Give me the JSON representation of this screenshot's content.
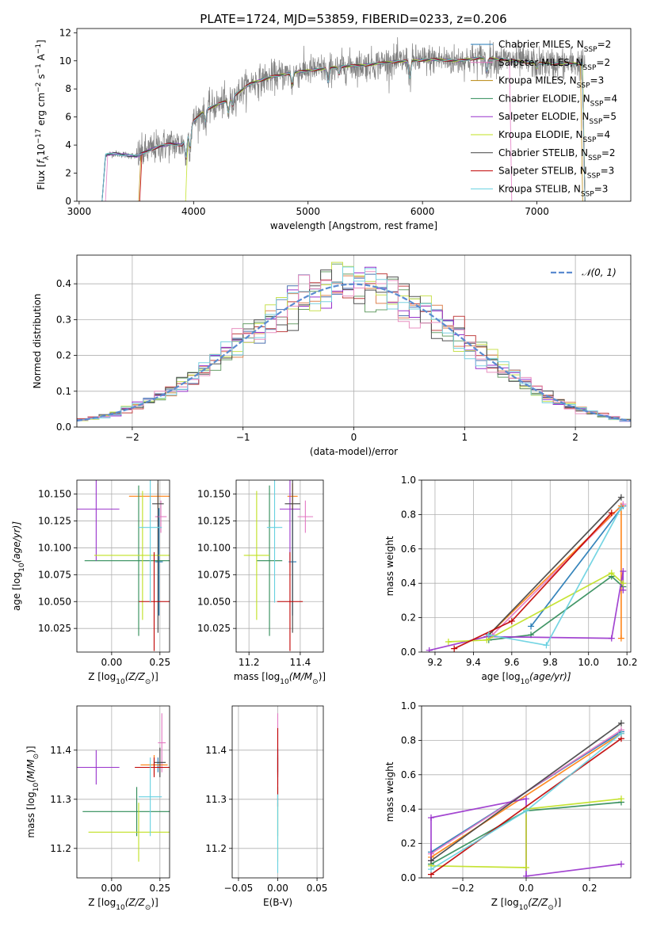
{
  "figure_title": "PLATE=1724, MJD=53859, FIBERID=0233, z=0.206",
  "palette": [
    "#4c72b0",
    "#dd8452",
    "#55a868",
    "#c44e52",
    "#8172b3",
    "#937860",
    "#da8bc3",
    "#8c8c8c",
    "#ccb974",
    "#64b5cd"
  ],
  "chart_data": [
    {
      "id": "spectrum",
      "type": "line",
      "title": "PLATE=1724, MJD=53859, FIBERID=0233, z=0.206",
      "xlabel": "wavelength [Angstrom, rest frame]",
      "ylabel_parts": [
        "Flux [",
        "f",
        "λ",
        "10",
        "−17",
        " erg cm",
        "−2",
        " s",
        "−1",
        " A",
        "−1",
        "]"
      ],
      "xlim": [
        2980,
        7820
      ],
      "ylim": [
        0,
        12.3
      ],
      "xticks": [
        3000,
        4000,
        5000,
        6000,
        7000
      ],
      "yticks": [
        0,
        2,
        4,
        6,
        8,
        10,
        12
      ],
      "legend_position": "upper right",
      "series": [
        {
          "name": "Chabrier MILES",
          "nssp": "2",
          "color": "#1f77b4"
        },
        {
          "name": "Salpeter MILES",
          "nssp": "2",
          "color": "#e377c2"
        },
        {
          "name": "Kroupa MILES",
          "nssp": "3",
          "color": "#b8860b"
        },
        {
          "name": "Chabrier ELODIE",
          "nssp": "4",
          "color": "#2e8b57"
        },
        {
          "name": "Salpeter ELODIE",
          "nssp": "5",
          "color": "#9932cc"
        },
        {
          "name": "Kroupa ELODIE",
          "nssp": "4",
          "color": "#c0e020"
        },
        {
          "name": "Chabrier STELIB",
          "nssp": "2",
          "color": "#404040"
        },
        {
          "name": "Salpeter STELIB",
          "nssp": "3",
          "color": "#c00000"
        },
        {
          "name": "Kroupa STELIB",
          "nssp": "3",
          "color": "#66d0e0"
        }
      ],
      "data_envelope": {
        "x": [
          3200,
          3230,
          3300,
          3400,
          3500,
          3600,
          3700,
          3800,
          3900,
          3950,
          4000,
          4100,
          4300,
          4500,
          4700,
          4900,
          5100,
          5300,
          5500,
          5700,
          5900,
          6100,
          6300,
          6500,
          6700,
          6900,
          7100,
          7300,
          7420
        ],
        "y": [
          0,
          3.3,
          3.4,
          3.3,
          3.2,
          3.6,
          3.9,
          4.1,
          4.0,
          4.9,
          5.7,
          6.5,
          7.2,
          8.4,
          8.9,
          9.2,
          9.4,
          9.6,
          9.7,
          9.9,
          10.0,
          10.1,
          10.0,
          10.2,
          10.1,
          9.9,
          9.8,
          9.8,
          9.8
        ]
      }
    },
    {
      "id": "residuals",
      "type": "histogram",
      "xlabel": "(data-model)/error",
      "ylabel": "Normed distribution",
      "xlim": [
        -2.5,
        2.5
      ],
      "ylim": [
        0,
        0.48
      ],
      "xticks": [
        -2,
        -1,
        0,
        1,
        2
      ],
      "yticks": [
        0.0,
        0.1,
        0.2,
        0.3,
        0.4
      ],
      "legend_label": "𝒩(0, 1)",
      "legend_position": "upper right",
      "bin_width": 0.1,
      "bin_edges_range": [
        -2.5,
        2.5
      ],
      "reference_curve": "normal(0,1)"
    },
    {
      "id": "age-vs-z",
      "type": "errorbar",
      "xlabel_parts": [
        "Z [log",
        "10",
        "(Z/Z",
        "⊙",
        ")]"
      ],
      "ylabel_parts": [
        "age  [log",
        "10",
        "(age/yr)]"
      ],
      "xlim": [
        -0.18,
        0.3
      ],
      "ylim": [
        10.003,
        10.163
      ],
      "xticks": [
        0.0,
        0.25
      ],
      "yticks": [
        10.025,
        10.05,
        10.075,
        10.1,
        10.125,
        10.15
      ],
      "points": [
        {
          "x": 0.245,
          "xerr": 0.02,
          "y": 10.087,
          "yerr": 0.05,
          "color": "#1f77b4"
        },
        {
          "x": 0.255,
          "xerr": 0.03,
          "y": 10.129,
          "yerr": 0.015,
          "color": "#e377c2"
        },
        {
          "x": 0.24,
          "xerr": 0.15,
          "y": 10.148,
          "yerr": 0.012,
          "color": "#ff7f0e"
        },
        {
          "x": 0.14,
          "xerr": 0.28,
          "y": 10.088,
          "yerr": 0.07,
          "color": "#2e8b57"
        },
        {
          "x": -0.08,
          "xerr": 0.12,
          "y": 10.136,
          "yerr": 0.048,
          "color": "#9932cc"
        },
        {
          "x": 0.16,
          "xerr": 0.25,
          "y": 10.093,
          "yerr": 0.06,
          "color": "#c0e020"
        },
        {
          "x": 0.24,
          "xerr": 0.03,
          "y": 10.141,
          "yerr": 0.12,
          "color": "#404040"
        },
        {
          "x": 0.22,
          "xerr": 0.08,
          "y": 10.05,
          "yerr": 0.046,
          "color": "#c00000"
        },
        {
          "x": 0.2,
          "xerr": 0.06,
          "y": 10.119,
          "yerr": 0.07,
          "color": "#66d0e0"
        }
      ]
    },
    {
      "id": "age-vs-mass",
      "type": "errorbar",
      "xlabel_parts": [
        "mass [log",
        "10",
        "(M/M",
        "⊙",
        ")]"
      ],
      "xlim": [
        11.15,
        11.49
      ],
      "ylim": [
        10.003,
        10.163
      ],
      "xticks": [
        11.2,
        11.4
      ],
      "yticks": [
        10.025,
        10.05,
        10.075,
        10.1,
        10.125,
        10.15
      ],
      "points": [
        {
          "x": 11.37,
          "xerr": 0.015,
          "y": 10.087,
          "yerr": 0.05,
          "color": "#1f77b4"
        },
        {
          "x": 11.42,
          "xerr": 0.03,
          "y": 10.129,
          "yerr": 0.015,
          "color": "#e377c2"
        },
        {
          "x": 11.37,
          "xerr": 0.02,
          "y": 10.148,
          "yerr": 0.012,
          "color": "#ff7f0e"
        },
        {
          "x": 11.28,
          "xerr": 0.05,
          "y": 10.088,
          "yerr": 0.07,
          "color": "#2e8b57"
        },
        {
          "x": 11.36,
          "xerr": 0.04,
          "y": 10.136,
          "yerr": 0.048,
          "color": "#9932cc"
        },
        {
          "x": 11.23,
          "xerr": 0.05,
          "y": 10.093,
          "yerr": 0.06,
          "color": "#c0e020"
        },
        {
          "x": 11.37,
          "xerr": 0.03,
          "y": 10.141,
          "yerr": 0.12,
          "color": "#404040"
        },
        {
          "x": 11.36,
          "xerr": 0.05,
          "y": 10.05,
          "yerr": 0.046,
          "color": "#c00000"
        },
        {
          "x": 11.3,
          "xerr": 0.03,
          "y": 10.119,
          "yerr": 0.07,
          "color": "#66d0e0"
        }
      ]
    },
    {
      "id": "weight-vs-age",
      "type": "line",
      "xlabel_parts": [
        "age  [log",
        "10",
        "(age/yr)]"
      ],
      "ylabel": "mass weight",
      "xlim": [
        9.13,
        10.22
      ],
      "ylim": [
        0,
        1.0
      ],
      "xticks": [
        9.2,
        9.4,
        9.6,
        9.8,
        10.0,
        10.2
      ],
      "yticks": [
        0.0,
        0.2,
        0.4,
        0.6,
        0.8,
        1.0
      ],
      "series": [
        {
          "color": "#1f77b4",
          "x": [
            9.7,
            10.18
          ],
          "y": [
            0.15,
            0.85
          ]
        },
        {
          "color": "#e377c2",
          "x": [
            9.5,
            10.18
          ],
          "y": [
            0.1,
            0.86
          ]
        },
        {
          "color": "#ff7f0e",
          "x": [
            9.48,
            10.17,
            10.17
          ],
          "y": [
            0.1,
            0.85,
            0.08
          ]
        },
        {
          "color": "#2e8b57",
          "x": [
            9.48,
            9.7,
            10.12,
            10.18
          ],
          "y": [
            0.07,
            0.1,
            0.44,
            0.38
          ]
        },
        {
          "color": "#9932cc",
          "x": [
            9.17,
            9.47,
            10.12,
            10.18,
            10.18
          ],
          "y": [
            0.01,
            0.09,
            0.08,
            0.47,
            0.36
          ]
        },
        {
          "color": "#c0e020",
          "x": [
            9.27,
            9.47,
            10.12,
            10.18
          ],
          "y": [
            0.06,
            0.07,
            0.46,
            0.4
          ]
        },
        {
          "color": "#404040",
          "x": [
            9.48,
            10.17
          ],
          "y": [
            0.1,
            0.9
          ]
        },
        {
          "color": "#c00000",
          "x": [
            9.3,
            9.6,
            10.12
          ],
          "y": [
            0.02,
            0.18,
            0.81
          ]
        },
        {
          "color": "#66d0e0",
          "x": [
            9.48,
            9.78,
            10.17
          ],
          "y": [
            0.1,
            0.04,
            0.84
          ]
        }
      ]
    },
    {
      "id": "mass-vs-z",
      "type": "errorbar",
      "xlabel_parts": [
        "Z [log",
        "10",
        "(Z/Z",
        "⊙",
        ")]"
      ],
      "ylabel_parts": [
        "mass [log",
        "10",
        "(M/M",
        "⊙",
        ")]"
      ],
      "xlim": [
        -0.18,
        0.3
      ],
      "ylim": [
        11.14,
        11.49
      ],
      "xticks": [
        0.0,
        0.25
      ],
      "yticks": [
        11.2,
        11.3,
        11.4
      ],
      "points": [
        {
          "x": 0.24,
          "xerr": 0.03,
          "y": 11.37,
          "yerr": 0.015,
          "color": "#1f77b4"
        },
        {
          "x": 0.26,
          "xerr": 0.02,
          "y": 11.415,
          "yerr": 0.06,
          "color": "#e377c2"
        },
        {
          "x": 0.22,
          "xerr": 0.07,
          "y": 11.37,
          "yerr": 0.02,
          "color": "#ff7f0e"
        },
        {
          "x": 0.13,
          "xerr": 0.28,
          "y": 11.275,
          "yerr": 0.05,
          "color": "#2e8b57"
        },
        {
          "x": -0.08,
          "xerr": 0.12,
          "y": 11.365,
          "yerr": 0.035,
          "color": "#9932cc"
        },
        {
          "x": 0.14,
          "xerr": 0.26,
          "y": 11.233,
          "yerr": 0.06,
          "color": "#c0e020"
        },
        {
          "x": 0.25,
          "xerr": 0.03,
          "y": 11.375,
          "yerr": 0.03,
          "color": "#404040"
        },
        {
          "x": 0.22,
          "xerr": 0.1,
          "y": 11.365,
          "yerr": 0.02,
          "color": "#c00000"
        },
        {
          "x": 0.2,
          "xerr": 0.06,
          "y": 11.305,
          "yerr": 0.08,
          "color": "#66d0e0"
        }
      ]
    },
    {
      "id": "mass-vs-ebv",
      "type": "errorbar",
      "xlabel": "E(B-V)",
      "xlim": [
        -0.058,
        0.058
      ],
      "ylim": [
        11.14,
        11.49
      ],
      "xticks": [
        -0.05,
        0.0,
        0.05
      ],
      "yticks": [
        11.2,
        11.3,
        11.4
      ],
      "points": [
        {
          "x": 0.0,
          "y": 11.37,
          "yerr": 0.015,
          "color": "#1f77b4"
        },
        {
          "x": 0.0,
          "y": 11.415,
          "yerr": 0.06,
          "color": "#e377c2"
        },
        {
          "x": 0.0,
          "y": 11.37,
          "yerr": 0.02,
          "color": "#ff7f0e"
        },
        {
          "x": 0.0,
          "y": 11.275,
          "yerr": 0.05,
          "color": "#2e8b57"
        },
        {
          "x": 0.0,
          "y": 11.365,
          "yerr": 0.035,
          "color": "#9932cc"
        },
        {
          "x": 0.0,
          "y": 11.233,
          "yerr": 0.06,
          "color": "#c0e020"
        },
        {
          "x": 0.0,
          "y": 11.375,
          "yerr": 0.03,
          "color": "#404040"
        },
        {
          "x": 0.0,
          "y": 11.365,
          "yerr": 0.08,
          "color": "#c00000"
        },
        {
          "x": 0.0,
          "y": 11.23,
          "yerr": 0.08,
          "color": "#66d0e0"
        }
      ]
    },
    {
      "id": "weight-vs-z",
      "type": "line",
      "xlabel_parts": [
        "Z [log",
        "10",
        "(Z/Z",
        "⊙",
        ")]"
      ],
      "ylabel": "mass weight",
      "xlim": [
        -0.33,
        0.33
      ],
      "ylim": [
        0,
        1.0
      ],
      "xticks": [
        -0.2,
        0.0,
        0.2
      ],
      "yticks": [
        0.0,
        0.2,
        0.4,
        0.6,
        0.8,
        1.0
      ],
      "series": [
        {
          "color": "#1f77b4",
          "x": [
            -0.3,
            0.3
          ],
          "y": [
            0.15,
            0.85
          ]
        },
        {
          "color": "#e377c2",
          "x": [
            -0.3,
            0.3
          ],
          "y": [
            0.14,
            0.86
          ]
        },
        {
          "color": "#ff7f0e",
          "x": [
            -0.3,
            0.3
          ],
          "y": [
            0.12,
            0.84
          ]
        },
        {
          "color": "#2e8b57",
          "x": [
            -0.3,
            0.0,
            0.3
          ],
          "y": [
            0.08,
            0.39,
            0.44
          ]
        },
        {
          "color": "#9932cc",
          "x": [
            -0.3,
            -0.3,
            0.0,
            0.0,
            0.3
          ],
          "y": [
            0.1,
            0.35,
            0.46,
            0.01,
            0.08
          ]
        },
        {
          "color": "#c0e020",
          "x": [
            -0.3,
            0.0,
            0.0,
            0.3
          ],
          "y": [
            0.07,
            0.06,
            0.4,
            0.46
          ]
        },
        {
          "color": "#404040",
          "x": [
            -0.3,
            0.3
          ],
          "y": [
            0.1,
            0.9
          ]
        },
        {
          "color": "#c00000",
          "x": [
            -0.3,
            0.3
          ],
          "y": [
            0.02,
            0.81
          ]
        },
        {
          "color": "#66d0e0",
          "x": [
            -0.3,
            0.0,
            0.3
          ],
          "y": [
            0.05,
            0.39,
            0.84
          ]
        }
      ]
    }
  ]
}
